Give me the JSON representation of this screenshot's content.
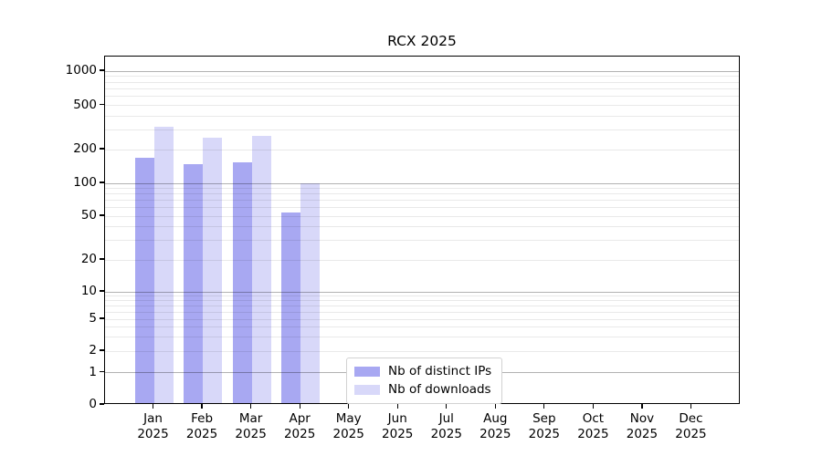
{
  "title": "RCX 2025",
  "legend": {
    "items": [
      {
        "label": "Nb of distinct IPs",
        "color": "#a8a8f2"
      },
      {
        "label": "Nb of downloads",
        "color": "#d8d8f9"
      }
    ]
  },
  "chart_data": {
    "type": "bar",
    "title": "RCX 2025",
    "categories": [
      "Jan",
      "Feb",
      "Mar",
      "Apr",
      "May",
      "Jun",
      "Jul",
      "Aug",
      "Sep",
      "Oct",
      "Nov",
      "Dec"
    ],
    "category_year": "2025",
    "series": [
      {
        "name": "Nb of distinct IPs",
        "color": "#a8a8f2",
        "values": [
          162,
          142,
          147,
          52,
          null,
          null,
          null,
          null,
          null,
          null,
          null,
          null
        ]
      },
      {
        "name": "Nb of downloads",
        "color": "#d8d8f9",
        "values": [
          310,
          244,
          258,
          96,
          null,
          null,
          null,
          null,
          null,
          null,
          null,
          null
        ]
      }
    ],
    "y_axis": {
      "scale": "log-with-zero-baseline",
      "tick_labels": [
        0,
        1,
        2,
        5,
        10,
        20,
        50,
        100,
        200,
        500,
        1000
      ],
      "top": 1000
    },
    "grid": {
      "horizontal": true,
      "major_at": [
        1,
        10,
        100,
        1000
      ],
      "minor_per_decade": [
        2,
        3,
        4,
        5,
        6,
        7,
        8,
        9
      ],
      "drawn_above_bars": true
    },
    "legend_position": "inside-bottom-center"
  }
}
